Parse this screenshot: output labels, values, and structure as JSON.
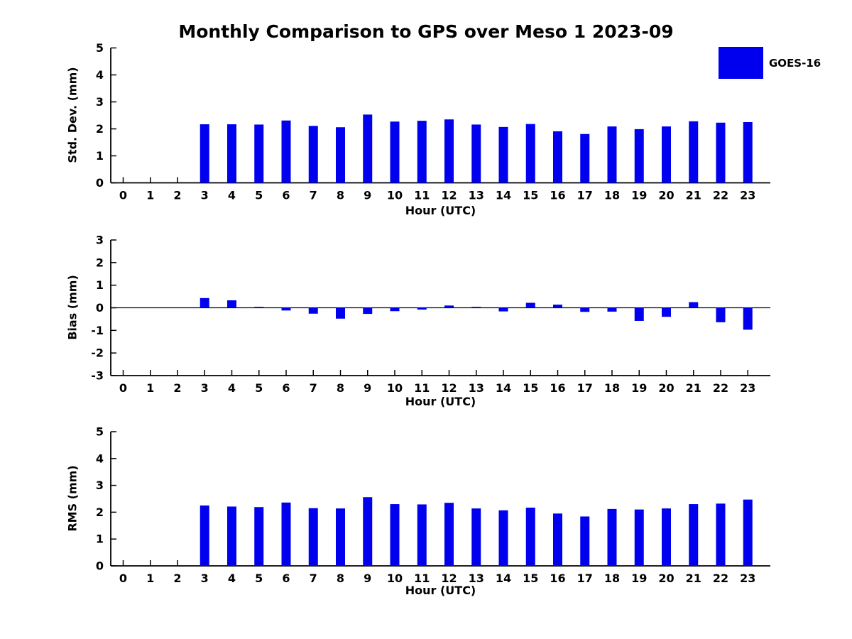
{
  "figure": {
    "title": "Monthly Comparison to GPS over Meso 1 2023-09",
    "legend": {
      "label": "GOES-16",
      "color": "#0000EE"
    },
    "text_color": "#000000",
    "background": "#ffffff"
  },
  "chart_data": [
    {
      "type": "bar",
      "title": "Monthly Comparison to GPS over Meso 1 2023-09",
      "ylabel": "Std. Dev. (mm)",
      "xlabel": "Hour (UTC)",
      "categories": [
        0,
        1,
        2,
        3,
        4,
        5,
        6,
        7,
        8,
        9,
        10,
        11,
        12,
        13,
        14,
        15,
        16,
        17,
        18,
        19,
        20,
        21,
        22,
        23
      ],
      "series": [
        {
          "name": "GOES-16",
          "color": "#0000EE",
          "values": [
            null,
            null,
            null,
            2.17,
            2.17,
            2.16,
            2.31,
            2.11,
            2.06,
            2.53,
            2.27,
            2.3,
            2.35,
            2.16,
            2.07,
            2.18,
            1.91,
            1.81,
            2.09,
            1.99,
            2.09,
            2.28,
            2.23,
            2.25
          ]
        }
      ],
      "ylim": [
        0,
        5
      ],
      "yticks": [
        0,
        1,
        2,
        3,
        4,
        5
      ],
      "grid": false,
      "legend_position": "upper right outside plot"
    },
    {
      "type": "bar",
      "title": "",
      "ylabel": "Bias (mm)",
      "xlabel": "Hour (UTC)",
      "categories": [
        0,
        1,
        2,
        3,
        4,
        5,
        6,
        7,
        8,
        9,
        10,
        11,
        12,
        13,
        14,
        15,
        16,
        17,
        18,
        19,
        20,
        21,
        22,
        23
      ],
      "series": [
        {
          "name": "GOES-16",
          "color": "#0000EE",
          "values": [
            null,
            null,
            null,
            0.43,
            0.33,
            0.04,
            -0.12,
            -0.26,
            -0.48,
            -0.27,
            -0.15,
            -0.08,
            0.1,
            0.04,
            -0.16,
            0.22,
            0.14,
            -0.18,
            -0.17,
            -0.58,
            -0.4,
            0.25,
            -0.64,
            -0.97
          ]
        }
      ],
      "ylim": [
        -3,
        3
      ],
      "yticks": [
        -3,
        -2,
        -1,
        0,
        1,
        2,
        3
      ],
      "zero_line": true,
      "grid": false
    },
    {
      "type": "bar",
      "title": "",
      "ylabel": "RMS (mm)",
      "xlabel": "Hour (UTC)",
      "categories": [
        0,
        1,
        2,
        3,
        4,
        5,
        6,
        7,
        8,
        9,
        10,
        11,
        12,
        13,
        14,
        15,
        16,
        17,
        18,
        19,
        20,
        21,
        22,
        23
      ],
      "series": [
        {
          "name": "GOES-16",
          "color": "#0000EE",
          "values": [
            null,
            null,
            null,
            2.25,
            2.21,
            2.19,
            2.36,
            2.15,
            2.14,
            2.56,
            2.3,
            2.29,
            2.35,
            2.14,
            2.07,
            2.17,
            1.95,
            1.84,
            2.12,
            2.1,
            2.14,
            2.3,
            2.32,
            2.47
          ]
        }
      ],
      "ylim": [
        0,
        5
      ],
      "yticks": [
        0,
        1,
        2,
        3,
        4,
        5
      ],
      "grid": false
    }
  ]
}
